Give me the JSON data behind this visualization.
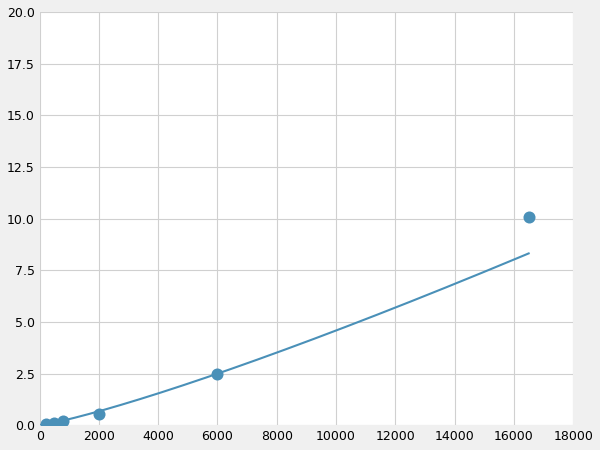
{
  "x": [
    200,
    500,
    800,
    2000,
    6000,
    16500
  ],
  "y": [
    0.06,
    0.12,
    0.18,
    0.55,
    2.5,
    10.1
  ],
  "line_color": "#4a90b8",
  "marker_color": "#4a90b8",
  "marker_size": 5,
  "linewidth": 1.5,
  "xlim": [
    0,
    18000
  ],
  "ylim": [
    0,
    20
  ],
  "xticks": [
    0,
    2000,
    4000,
    6000,
    8000,
    10000,
    12000,
    14000,
    16000,
    18000
  ],
  "yticks": [
    0.0,
    2.5,
    5.0,
    7.5,
    10.0,
    12.5,
    15.0,
    17.5,
    20.0
  ],
  "grid_color": "#d0d0d0",
  "background_color": "#ffffff",
  "fig_bg_color": "#f0f0f0"
}
